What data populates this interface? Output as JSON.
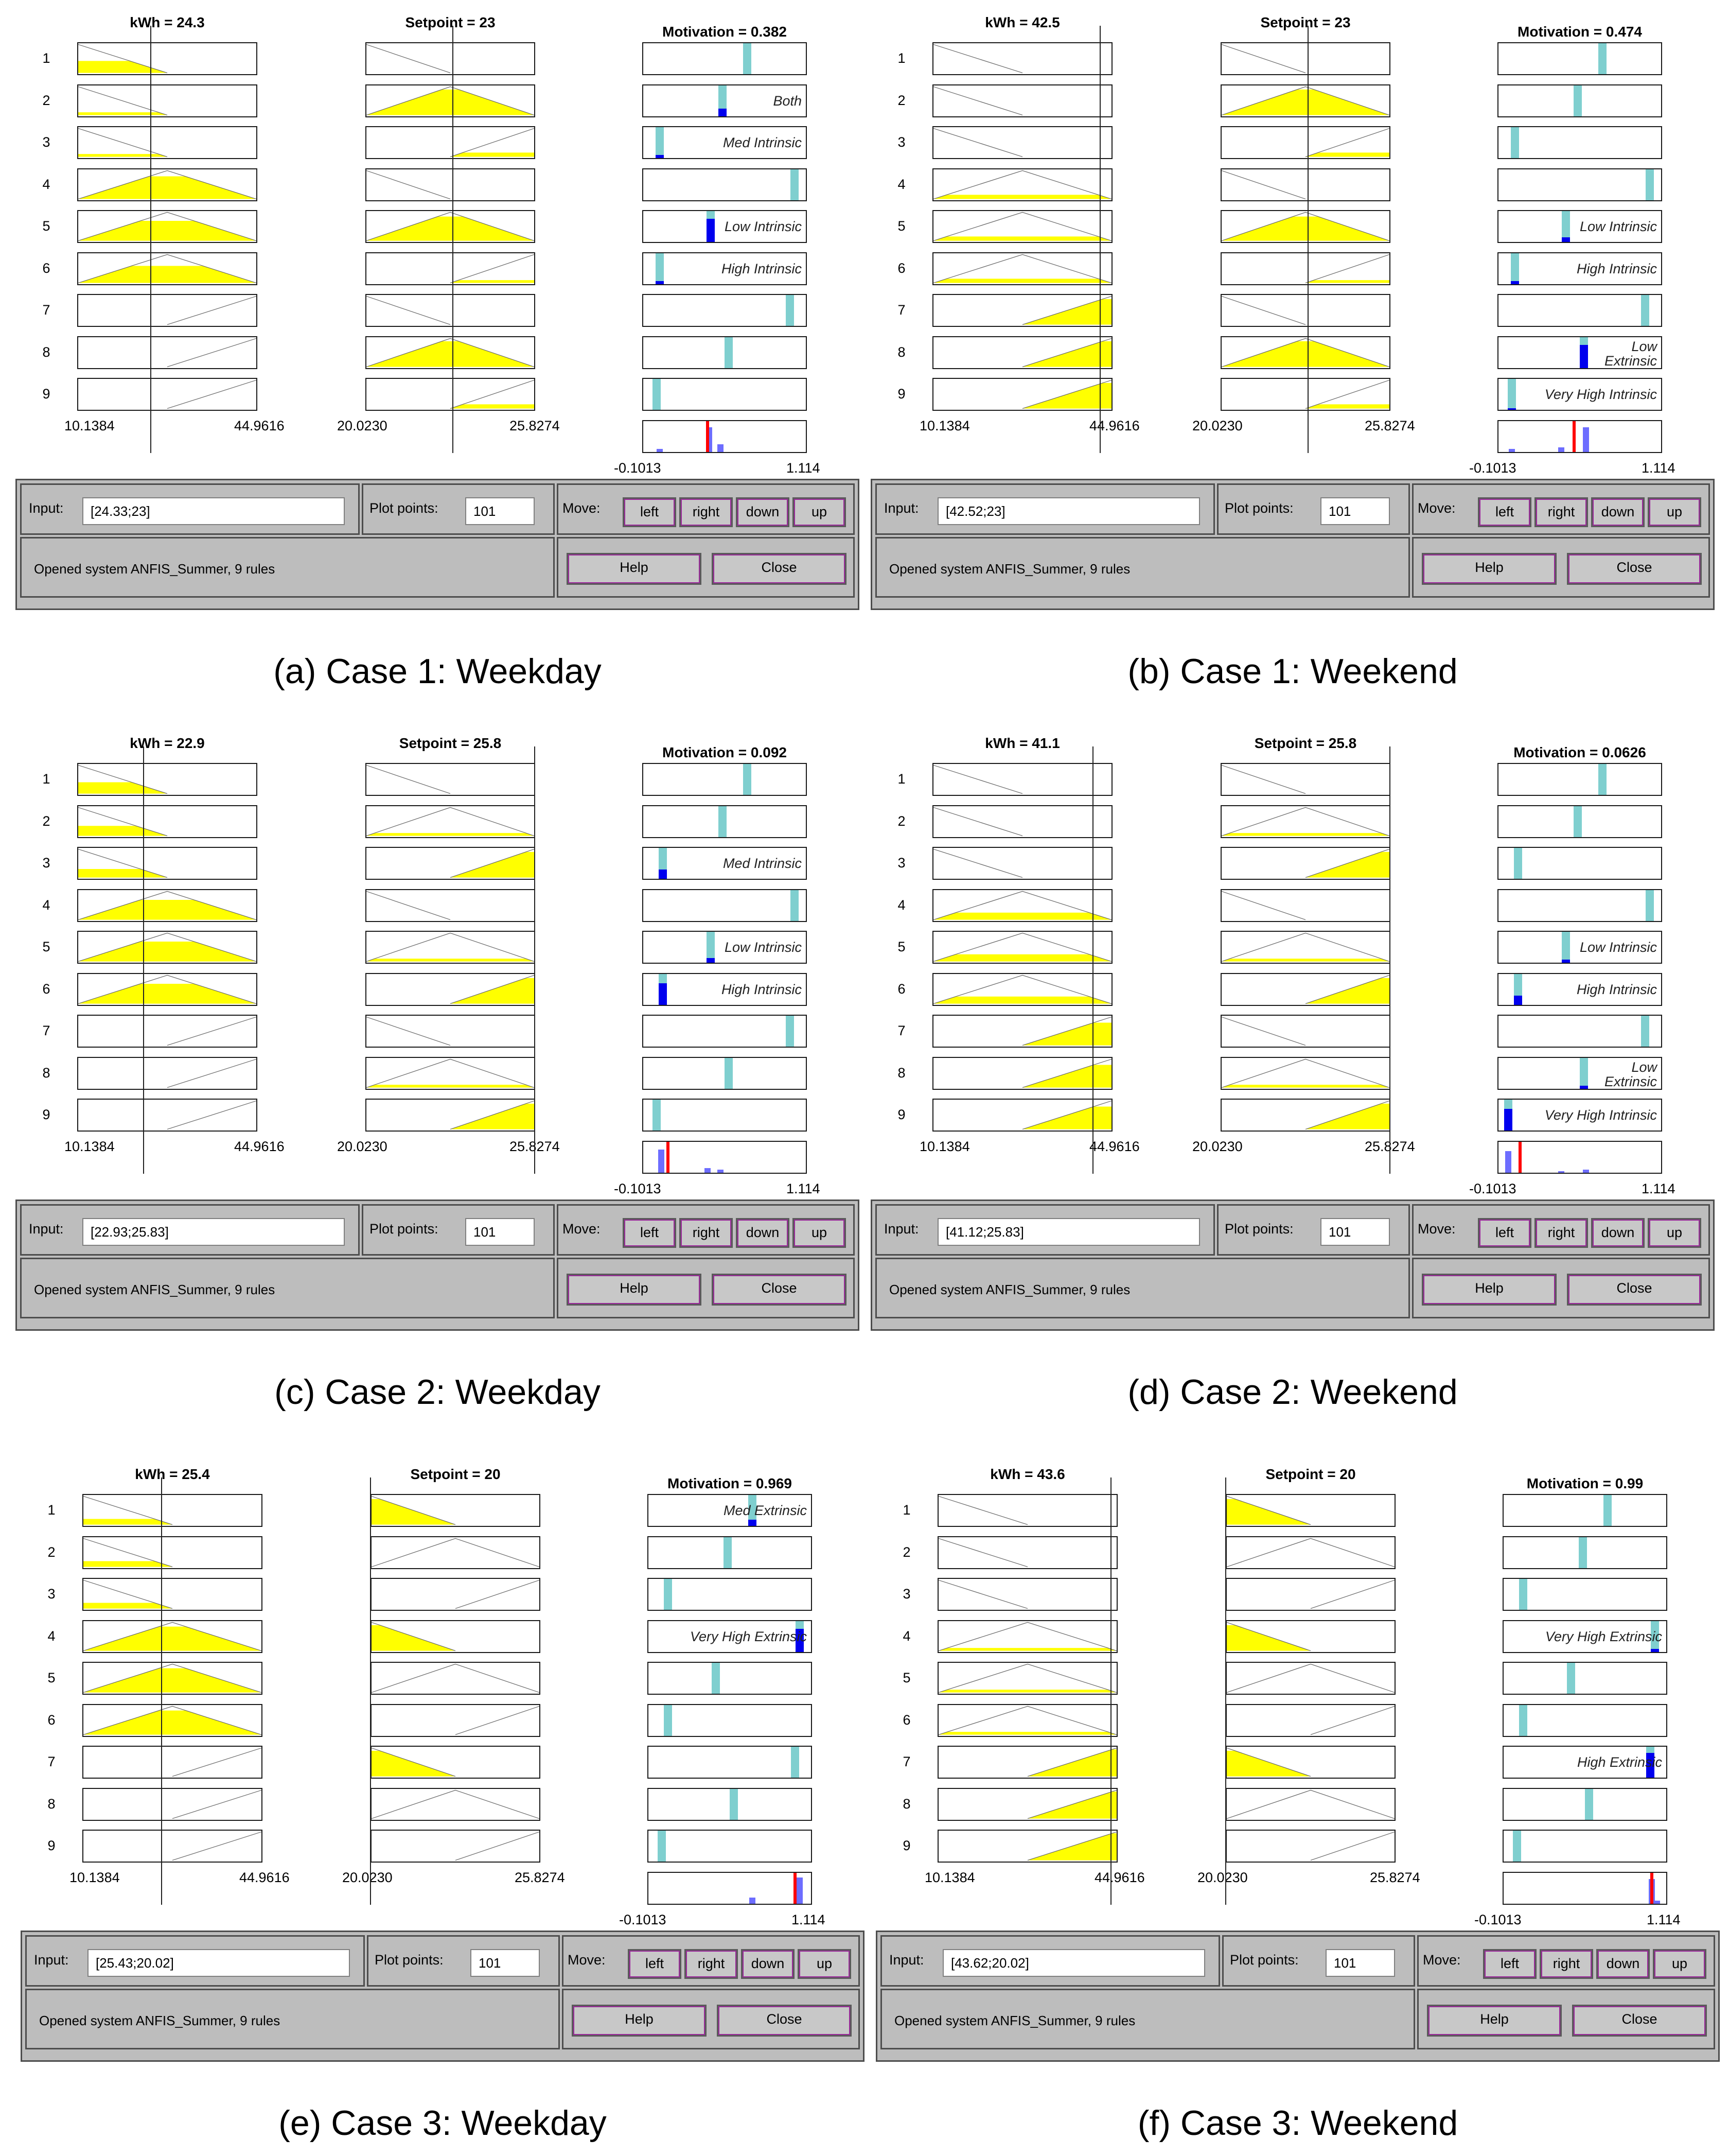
{
  "colors": {
    "fill": "#ffff00",
    "rule_bar": "#7fcfcf",
    "rule_active": "#0000ee",
    "agg_bar": "#6d6dff",
    "agg_line": "#ff0000",
    "gui_bg": "#bdbdbd"
  },
  "labels": {
    "input": "Input:",
    "plot_points": "Plot points:",
    "move": "Move:",
    "left": "left",
    "right": "right",
    "down": "down",
    "up": "up",
    "help": "Help",
    "close": "Close"
  },
  "rule_numbers": [
    "1",
    "2",
    "3",
    "4",
    "5",
    "6",
    "7",
    "8",
    "9"
  ],
  "panels": [
    {
      "caption": "(a) Case 1: Weekday",
      "kwh_title": "kWh = 24.3",
      "setpoint_title": "Setpoint = 23",
      "motivation_title": "Motivation = 0.382",
      "kwh_range": [
        "10.1384",
        "44.9616"
      ],
      "setpoint_range": [
        "20.0230",
        "25.8274"
      ],
      "out_range": [
        "-0.1013",
        "1.114"
      ],
      "kwh_value": 24.3,
      "setpoint_value": 23,
      "input_value": "[24.33;23]",
      "plot_points": "101",
      "status": "Opened system ANFIS_Summer, 9 rules",
      "kwh_mf": [
        [
          "L",
          0.42
        ],
        [
          "L",
          0.1
        ],
        [
          "L",
          0.1
        ],
        [
          "M",
          0.8
        ],
        [
          "M",
          0.7
        ],
        [
          "M",
          0.6
        ],
        [
          "H",
          0
        ],
        [
          "H",
          0
        ],
        [
          "H",
          0
        ]
      ],
      "set_mf": [
        [
          "L",
          0
        ],
        [
          "M",
          0.9
        ],
        [
          "H",
          0.15
        ],
        [
          "L",
          0
        ],
        [
          "M",
          0.85
        ],
        [
          "H",
          0.1
        ],
        [
          "L",
          0
        ],
        [
          "M",
          0.9
        ],
        [
          "H",
          0.15
        ]
      ],
      "out_pos": [
        0.63,
        0.48,
        0.1,
        0.92,
        0.41,
        0.1,
        0.89,
        0.52,
        0.08
      ],
      "out_active": [
        0,
        0.25,
        0.1,
        0,
        0.75,
        0.1,
        0,
        0,
        0
      ],
      "out_labels": [
        "",
        "Both",
        "Med Intrinsic",
        "",
        "Low Intrinsic",
        "High Intrinsic",
        "",
        "",
        ""
      ],
      "agg_bars": [
        [
          0.1,
          0.1
        ],
        [
          0.4,
          0.8
        ],
        [
          0.47,
          0.25
        ]
      ],
      "agg_line": 0.39
    },
    {
      "caption": "(b) Case 1: Weekend",
      "kwh_title": "kWh = 42.5",
      "setpoint_title": "Setpoint = 23",
      "motivation_title": "Motivation = 0.474",
      "kwh_range": [
        "10.1384",
        "44.9616"
      ],
      "setpoint_range": [
        "20.0230",
        "25.8274"
      ],
      "out_range": [
        "-0.1013",
        "1.114"
      ],
      "kwh_value": 42.5,
      "setpoint_value": 23,
      "input_value": "[42.52;23]",
      "plot_points": "101",
      "status": "Opened system ANFIS_Summer, 9 rules",
      "kwh_mf": [
        [
          "L",
          0
        ],
        [
          "L",
          0
        ],
        [
          "L",
          0
        ],
        [
          "M",
          0.15
        ],
        [
          "M",
          0.15
        ],
        [
          "M",
          0.15
        ],
        [
          "H",
          0.9
        ],
        [
          "H",
          0.9
        ],
        [
          "H",
          0.9
        ]
      ],
      "set_mf": [
        [
          "L",
          0
        ],
        [
          "M",
          0.9
        ],
        [
          "H",
          0.15
        ],
        [
          "L",
          0
        ],
        [
          "M",
          0.85
        ],
        [
          "H",
          0.1
        ],
        [
          "L",
          0
        ],
        [
          "M",
          0.9
        ],
        [
          "H",
          0.15
        ]
      ],
      "out_pos": [
        0.63,
        0.48,
        0.1,
        0.92,
        0.41,
        0.1,
        0.89,
        0.52,
        0.08
      ],
      "out_active": [
        0,
        0,
        0,
        0,
        0.15,
        0.1,
        0,
        0.75,
        0.05
      ],
      "out_labels": [
        "",
        "",
        "",
        "",
        "Low Intrinsic",
        "High Intrinsic",
        "",
        "Low\nExtrinsic",
        "Very High Intrinsic"
      ],
      "agg_bars": [
        [
          0.08,
          0.1
        ],
        [
          0.38,
          0.15
        ],
        [
          0.53,
          0.8
        ]
      ],
      "agg_line": 0.46
    },
    {
      "caption": "(c) Case 2: Weekday",
      "kwh_title": "kWh = 22.9",
      "setpoint_title": "Setpoint = 25.8",
      "motivation_title": "Motivation = 0.092",
      "kwh_range": [
        "10.1384",
        "44.9616"
      ],
      "setpoint_range": [
        "20.0230",
        "25.8274"
      ],
      "out_range": [
        "-0.1013",
        "1.114"
      ],
      "kwh_value": 22.9,
      "setpoint_value": 25.8,
      "input_value": "[22.93;25.83]",
      "plot_points": "101",
      "status": "Opened system ANFIS_Summer, 9 rules",
      "kwh_mf": [
        [
          "L",
          0.4
        ],
        [
          "L",
          0.35
        ],
        [
          "L",
          0.3
        ],
        [
          "M",
          0.7
        ],
        [
          "M",
          0.7
        ],
        [
          "M",
          0.7
        ],
        [
          "H",
          0
        ],
        [
          "H",
          0
        ],
        [
          "H",
          0
        ]
      ],
      "set_mf": [
        [
          "L",
          0
        ],
        [
          "M",
          0.1
        ],
        [
          "H",
          0.9
        ],
        [
          "L",
          0
        ],
        [
          "M",
          0.1
        ],
        [
          "H",
          0.9
        ],
        [
          "L",
          0
        ],
        [
          "M",
          0.1
        ],
        [
          "H",
          0.9
        ]
      ],
      "out_pos": [
        0.63,
        0.48,
        0.12,
        0.92,
        0.41,
        0.12,
        0.89,
        0.52,
        0.08
      ],
      "out_active": [
        0,
        0,
        0.3,
        0,
        0.15,
        0.7,
        0,
        0,
        0
      ],
      "out_labels": [
        "",
        "",
        "Med Intrinsic",
        "",
        "Low Intrinsic",
        "High Intrinsic",
        "",
        "",
        ""
      ],
      "agg_bars": [
        [
          0.11,
          0.75
        ],
        [
          0.39,
          0.15
        ],
        [
          0.47,
          0.1
        ]
      ],
      "agg_line": 0.15
    },
    {
      "caption": "(d) Case 2: Weekend",
      "kwh_title": "kWh = 41.1",
      "setpoint_title": "Setpoint = 25.8",
      "motivation_title": "Motivation = 0.0626",
      "kwh_range": [
        "10.1384",
        "44.9616"
      ],
      "setpoint_range": [
        "20.0230",
        "25.8274"
      ],
      "out_range": [
        "-0.1013",
        "1.114"
      ],
      "kwh_value": 41.1,
      "setpoint_value": 25.8,
      "input_value": "[41.12;25.83]",
      "plot_points": "101",
      "status": "Opened system ANFIS_Summer, 9 rules",
      "kwh_mf": [
        [
          "L",
          0
        ],
        [
          "L",
          0
        ],
        [
          "L",
          0
        ],
        [
          "M",
          0.25
        ],
        [
          "M",
          0.25
        ],
        [
          "M",
          0.25
        ],
        [
          "H",
          0.8
        ],
        [
          "H",
          0.8
        ],
        [
          "H",
          0.8
        ]
      ],
      "set_mf": [
        [
          "L",
          0
        ],
        [
          "M",
          0.1
        ],
        [
          "H",
          0.9
        ],
        [
          "L",
          0
        ],
        [
          "M",
          0.1
        ],
        [
          "H",
          0.9
        ],
        [
          "L",
          0
        ],
        [
          "M",
          0.1
        ],
        [
          "H",
          0.9
        ]
      ],
      "out_pos": [
        0.63,
        0.48,
        0.12,
        0.92,
        0.41,
        0.12,
        0.89,
        0.52,
        0.06
      ],
      "out_active": [
        0,
        0,
        0,
        0,
        0.1,
        0.3,
        0,
        0.1,
        0.7
      ],
      "out_labels": [
        "",
        "",
        "",
        "",
        "Low Intrinsic",
        "High Intrinsic",
        "",
        "Low\nExtrinsic",
        "Very High Intrinsic"
      ],
      "agg_bars": [
        [
          0.06,
          0.7
        ],
        [
          0.38,
          0.05
        ],
        [
          0.53,
          0.1
        ]
      ],
      "agg_line": 0.13
    },
    {
      "caption": "(e) Case 3: Weekday",
      "kwh_title": "kWh = 25.4",
      "setpoint_title": "Setpoint = 20",
      "motivation_title": "Motivation = 0.969",
      "kwh_range": [
        "10.1384",
        "44.9616"
      ],
      "setpoint_range": [
        "20.0230",
        "25.8274"
      ],
      "out_range": [
        "-0.1013",
        "1.114"
      ],
      "kwh_value": 25.4,
      "setpoint_value": 20,
      "input_value": "[25.43;20.02]",
      "plot_points": "101",
      "status": "Opened system ANFIS_Summer, 9 rules",
      "kwh_mf": [
        [
          "L",
          0.2
        ],
        [
          "L",
          0.2
        ],
        [
          "L",
          0.2
        ],
        [
          "M",
          0.85
        ],
        [
          "M",
          0.85
        ],
        [
          "M",
          0.85
        ],
        [
          "H",
          0
        ],
        [
          "H",
          0
        ],
        [
          "H",
          0
        ]
      ],
      "set_mf": [
        [
          "L",
          0.9
        ],
        [
          "M",
          0
        ],
        [
          "H",
          0
        ],
        [
          "L",
          0.9
        ],
        [
          "M",
          0
        ],
        [
          "H",
          0
        ],
        [
          "L",
          0.9
        ],
        [
          "M",
          0
        ],
        [
          "H",
          0
        ]
      ],
      "out_pos": [
        0.63,
        0.48,
        0.12,
        0.92,
        0.41,
        0.12,
        0.89,
        0.52,
        0.08
      ],
      "out_active": [
        0,
        0,
        0,
        0,
        0,
        0,
        0,
        0,
        0
      ],
      "out_labels": [
        "Med Extrinsic",
        "",
        "",
        "Very High Extrinsic",
        "",
        "",
        "",
        "",
        ""
      ],
      "out_active2": [
        0.2,
        0,
        0,
        0.75,
        0,
        0,
        0,
        0,
        0
      ],
      "agg_bars": [
        [
          0.63,
          0.2
        ],
        [
          0.92,
          0.85
        ]
      ],
      "agg_line": 0.89
    },
    {
      "caption": "(f) Case 3: Weekend",
      "kwh_title": "kWh = 43.6",
      "setpoint_title": "Setpoint = 20",
      "motivation_title": "Motivation = 0.99",
      "kwh_range": [
        "10.1384",
        "44.9616"
      ],
      "setpoint_range": [
        "20.0230",
        "25.8274"
      ],
      "out_range": [
        "-0.1013",
        "1.114"
      ],
      "kwh_value": 43.6,
      "setpoint_value": 20,
      "input_value": "[43.62;20.02]",
      "plot_points": "101",
      "status": "Opened system ANFIS_Summer, 9 rules",
      "kwh_mf": [
        [
          "L",
          0
        ],
        [
          "L",
          0
        ],
        [
          "L",
          0
        ],
        [
          "M",
          0.1
        ],
        [
          "M",
          0.1
        ],
        [
          "M",
          0.1
        ],
        [
          "H",
          0.95
        ],
        [
          "H",
          0.95
        ],
        [
          "H",
          0.95
        ]
      ],
      "set_mf": [
        [
          "L",
          0.9
        ],
        [
          "M",
          0
        ],
        [
          "H",
          0
        ],
        [
          "L",
          0.9
        ],
        [
          "M",
          0
        ],
        [
          "H",
          0
        ],
        [
          "L",
          0.9
        ],
        [
          "M",
          0
        ],
        [
          "H",
          0
        ]
      ],
      "out_pos": [
        0.63,
        0.48,
        0.12,
        0.92,
        0.41,
        0.12,
        0.89,
        0.52,
        0.08
      ],
      "out_active": [
        0,
        0,
        0,
        0.1,
        0,
        0,
        0.8,
        0,
        0
      ],
      "out_labels": [
        "",
        "",
        "",
        "Very High Extrinsic",
        "",
        "",
        "High Extrinsic",
        "",
        ""
      ],
      "agg_bars": [
        [
          0.9,
          0.8
        ],
        [
          0.93,
          0.1
        ]
      ],
      "agg_line": 0.9
    }
  ]
}
